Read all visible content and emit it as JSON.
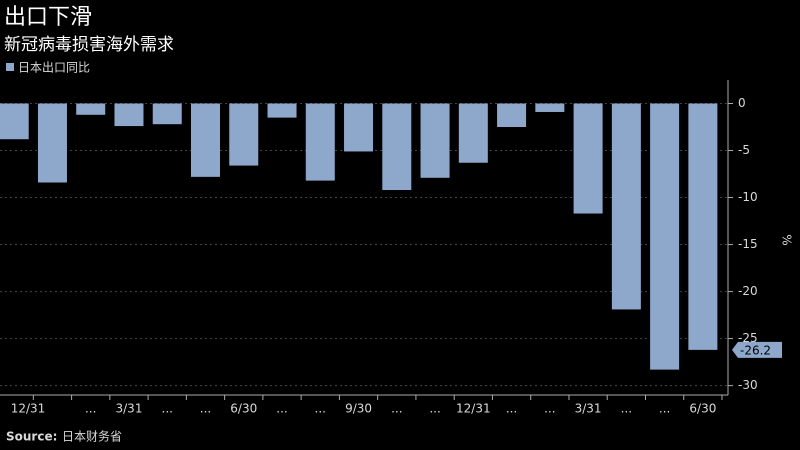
{
  "chart_data": {
    "type": "bar",
    "title": "出口下滑",
    "subtitle": "新冠病毒损害海外需求",
    "source_label": "Source:",
    "source": "日本财务省",
    "y_label": "%",
    "categories": [
      "12/31",
      null,
      "...",
      "3/31",
      "...",
      "...",
      "6/30",
      "...",
      "...",
      "9/30",
      "...",
      "...",
      "12/31",
      "...",
      "...",
      "3/31",
      "...",
      "...",
      "6/30"
    ],
    "series": [
      {
        "name": "日本出口同比",
        "color": "#8ea8cb",
        "values": [
          -3.8,
          -8.4,
          -1.2,
          -2.4,
          -2.2,
          -7.8,
          -6.6,
          -1.5,
          -8.2,
          -5.1,
          -9.2,
          -7.9,
          -6.3,
          -2.5,
          -0.9,
          -11.7,
          -21.9,
          -28.3,
          -26.2
        ]
      }
    ],
    "ylim": [
      -31,
      2.5
    ],
    "yticks": [
      0,
      -5,
      -10,
      -15,
      -20,
      -25,
      -30
    ],
    "grid": true,
    "legend": "top-left",
    "callout_index": 18
  }
}
